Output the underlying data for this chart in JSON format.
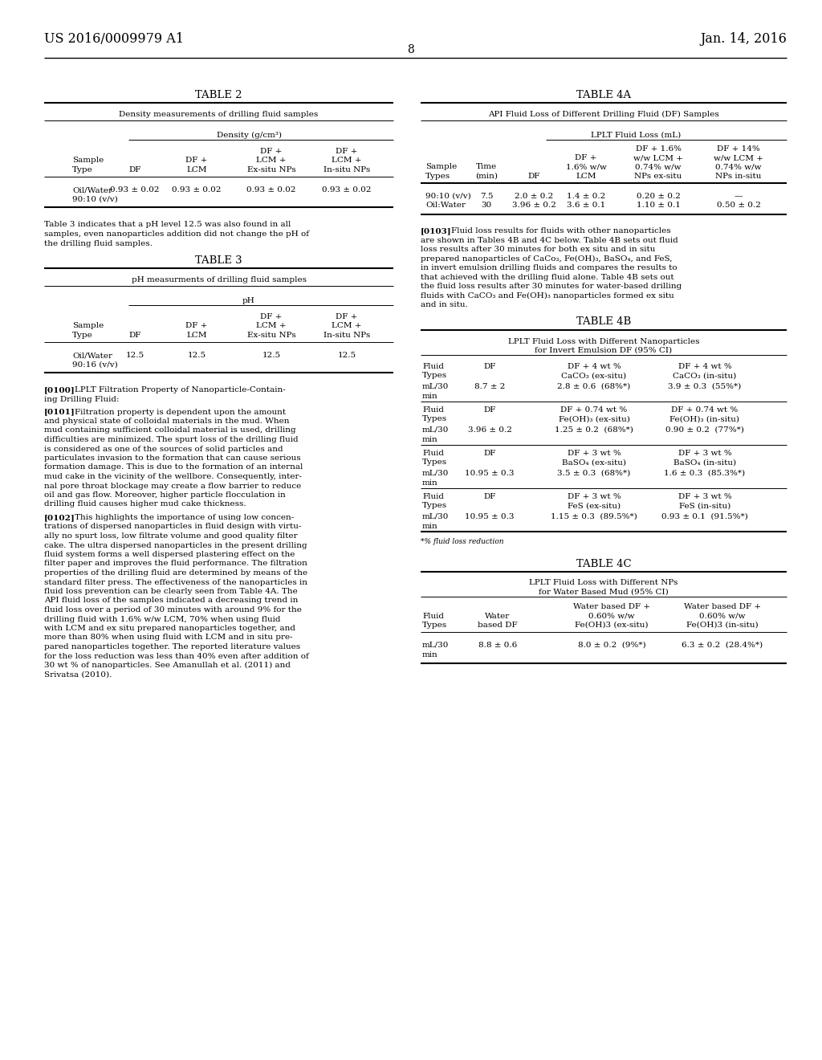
{
  "page_header_left": "US 2016/0009979 A1",
  "page_header_right": "Jan. 14, 2016",
  "page_number": "8",
  "table2_title": "TABLE 2",
  "table2_subtitle": "Density measurements of drilling fluid samples",
  "table2_density_hdr": "Density (g/cm³)",
  "table3_title": "TABLE 3",
  "table3_subtitle": "pH measurments of drilling fluid samples",
  "table3_ph_hdr": "pH",
  "table4a_title": "TABLE 4A",
  "table4a_subtitle": "API Fluid Loss of Different Drilling Fluid (DF) Samples",
  "table4a_lplt_hdr": "LPLT Fluid Loss (mL)",
  "table4b_title": "TABLE 4B",
  "table4b_sub1": "LPLT Fluid Loss with Different Nanoparticles",
  "table4b_sub2": "for Invert Emulsion DF (95% CI)",
  "table4b_footnote": "*% fluid loss reduction",
  "table4c_title": "TABLE 4C",
  "table4c_sub1": "LPLT Fluid Loss with Different NPs",
  "table4c_sub2": "for Water Based Mud (95% CI)",
  "para_indent": 38,
  "fs_title": 9.5,
  "fs_body": 8.0,
  "fs_small": 7.5,
  "lh": 11.5
}
